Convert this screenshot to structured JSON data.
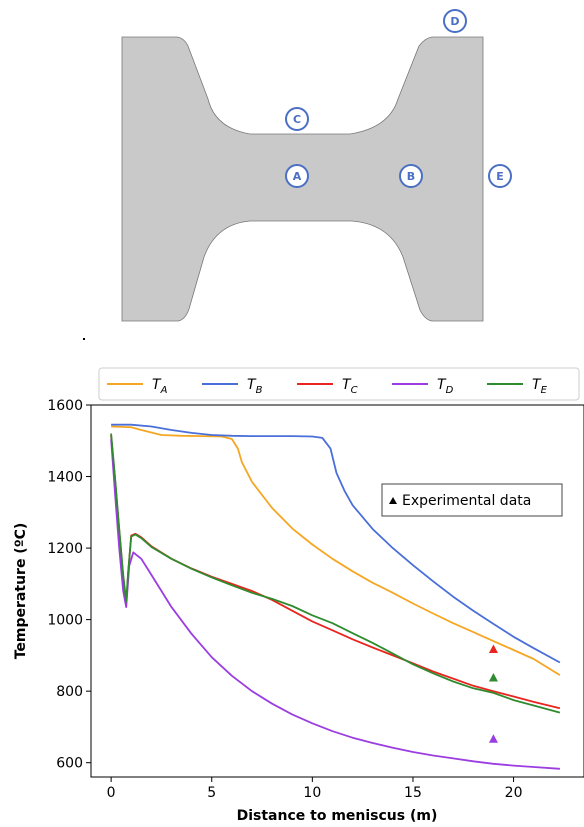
{
  "diagram": {
    "points": [
      {
        "id": "a",
        "label": "A"
      },
      {
        "id": "b",
        "label": "B"
      },
      {
        "id": "c",
        "label": "C"
      },
      {
        "id": "d",
        "label": "D"
      },
      {
        "id": "e",
        "label": "E"
      }
    ],
    "fill_color": "#c9c9c9",
    "marker_color": "#4a6fc4"
  },
  "chart_data": {
    "type": "line",
    "xlabel": "Distance to meniscus (m)",
    "ylabel": "Temperature (ºC)",
    "xlim": [
      -1,
      23.5
    ],
    "ylim": [
      560,
      1600
    ],
    "xticks": [
      0,
      5,
      10,
      15,
      20
    ],
    "yticks": [
      600,
      800,
      1000,
      1200,
      1400,
      1600
    ],
    "grid": false,
    "legend_position": "top",
    "series": [
      {
        "name": "T",
        "sub": "A",
        "color": "#f5a623",
        "x": [
          0,
          1,
          1.5,
          2.5,
          3.5,
          4.5,
          5.5,
          6,
          6.3,
          6.5,
          7,
          8,
          9,
          10,
          11,
          12,
          13,
          14,
          15,
          16,
          17,
          18,
          19,
          20,
          21,
          22.3
        ],
        "y": [
          1540,
          1538,
          1530,
          1516,
          1514,
          1513,
          1512,
          1505,
          1478,
          1440,
          1385,
          1312,
          1255,
          1210,
          1170,
          1135,
          1103,
          1075,
          1045,
          1017,
          990,
          965,
          940,
          915,
          890,
          845
        ]
      },
      {
        "name": "T",
        "sub": "B",
        "color": "#4a6fd8",
        "x": [
          0,
          1,
          2,
          3,
          4,
          5,
          6,
          7,
          8,
          9,
          10,
          10.5,
          10.9,
          11.2,
          11.6,
          12,
          13,
          14,
          15,
          16,
          17,
          18,
          19,
          20,
          21,
          22.3
        ],
        "y": [
          1545,
          1545,
          1540,
          1530,
          1522,
          1516,
          1514,
          1513,
          1513,
          1513,
          1512,
          1508,
          1478,
          1410,
          1360,
          1320,
          1253,
          1200,
          1152,
          1107,
          1064,
          1025,
          988,
          952,
          920,
          880
        ]
      },
      {
        "name": "T",
        "sub": "C",
        "color": "#e8251e",
        "x": [
          0,
          0.2,
          0.4,
          0.6,
          0.75,
          0.85,
          1,
          1.2,
          1.5,
          2,
          3,
          4,
          5,
          6,
          7,
          8,
          9,
          10,
          11,
          12,
          13,
          14,
          15,
          16,
          17,
          18,
          19,
          20,
          21,
          22.3
        ],
        "y": [
          1515,
          1390,
          1250,
          1120,
          1045,
          1130,
          1235,
          1240,
          1230,
          1205,
          1170,
          1143,
          1120,
          1100,
          1080,
          1055,
          1025,
          995,
          970,
          945,
          922,
          900,
          878,
          855,
          835,
          815,
          800,
          785,
          770,
          752
        ]
      },
      {
        "name": "T",
        "sub": "D",
        "color": "#9b3de0",
        "x": [
          0,
          0.2,
          0.4,
          0.6,
          0.75,
          0.9,
          1.1,
          1.5,
          2,
          3,
          4,
          5,
          6,
          7,
          8,
          9,
          10,
          11,
          12,
          13,
          14,
          15,
          16,
          17,
          18,
          19,
          20,
          21,
          22.3
        ],
        "y": [
          1505,
          1350,
          1200,
          1080,
          1035,
          1150,
          1188,
          1170,
          1125,
          1035,
          960,
          895,
          843,
          800,
          765,
          735,
          710,
          688,
          670,
          655,
          642,
          630,
          620,
          612,
          604,
          597,
          592,
          588,
          583
        ]
      },
      {
        "name": "T",
        "sub": "E",
        "color": "#2e8b2e",
        "x": [
          0,
          0.2,
          0.4,
          0.6,
          0.75,
          0.85,
          1,
          1.2,
          1.5,
          2,
          3,
          4,
          5,
          6,
          7,
          8,
          9,
          10,
          11,
          12,
          13,
          14,
          15,
          16,
          17,
          18,
          19,
          20,
          21,
          22.3
        ],
        "y": [
          1520,
          1395,
          1255,
          1125,
          1050,
          1135,
          1232,
          1238,
          1228,
          1203,
          1170,
          1142,
          1118,
          1096,
          1075,
          1058,
          1038,
          1012,
          990,
          962,
          935,
          905,
          875,
          850,
          827,
          808,
          795,
          775,
          760,
          740
        ]
      }
    ],
    "experimental": {
      "label": "Experimental data",
      "points": [
        {
          "x": 19,
          "y": 918,
          "color": "#e8251e"
        },
        {
          "x": 19,
          "y": 838,
          "color": "#2e8b2e"
        },
        {
          "x": 19,
          "y": 667,
          "color": "#9b3de0"
        }
      ]
    }
  }
}
